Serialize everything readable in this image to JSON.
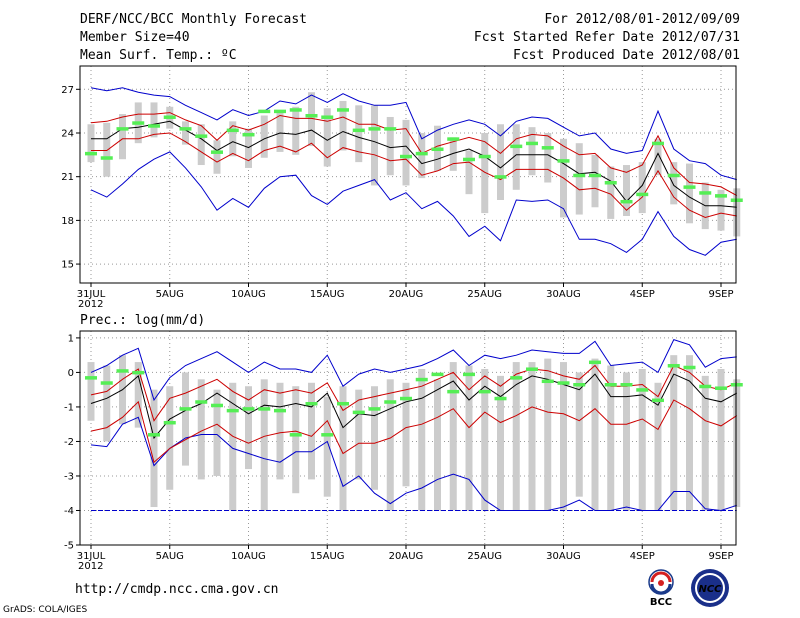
{
  "header": {
    "title": "DERF/NCC/BCC Monthly Forecast",
    "member_size": "Member Size=40",
    "variable": "Mean Surf. Temp.: ºC",
    "period": "For 2012/08/01-2012/09/09",
    "started": "Fcst Started Refer Date 2012/07/31",
    "produced": "Fcst Produced Date 2012/08/01"
  },
  "footer": {
    "url": "http://cmdp.ncc.cma.gov.cn",
    "credit": "GrADS: COLA/IGES",
    "bcc_logo_text": "BCC",
    "ncc_logo_text": "NCC"
  },
  "colors": {
    "envelope": "#0000cc",
    "spread": "#cc0000",
    "mean": "#000000",
    "box": "#cccccc",
    "obs": "#55ee55",
    "grid": "#999999"
  },
  "chart_data": [
    {
      "type": "box-ensemble",
      "title": "Mean Surf. Temp.: ºC",
      "x_tick_labels": [
        "31JUL\n2012",
        "5AUG",
        "10AUG",
        "15AUG",
        "20AUG",
        "25AUG",
        "30AUG",
        "4SEP",
        "9SEP"
      ],
      "x_tick_day_index": [
        0,
        5,
        10,
        15,
        20,
        25,
        30,
        35,
        40
      ],
      "ylim": [
        13.7,
        28.6
      ],
      "yticks": [
        15,
        18,
        21,
        24,
        27
      ],
      "series": {
        "max": [
          27.1,
          26.9,
          27.1,
          26.8,
          26.6,
          26.5,
          25.9,
          25.4,
          24.9,
          25.6,
          25.2,
          25.5,
          26.2,
          26.0,
          26.6,
          26.1,
          26.7,
          26.2,
          25.9,
          25.9,
          26.1,
          23.6,
          24.2,
          24.6,
          24.9,
          24.6,
          23.8,
          24.8,
          25.1,
          25.0,
          24.4,
          23.8,
          24.0,
          22.9,
          22.6,
          22.8,
          25.5,
          22.9,
          22.1,
          21.9,
          21.1,
          20.8
        ],
        "spread_upper": [
          24.7,
          24.8,
          25.1,
          25.3,
          25.3,
          25.4,
          24.9,
          24.5,
          23.5,
          24.5,
          24.2,
          24.6,
          25.2,
          25.0,
          25.0,
          24.8,
          25.1,
          24.6,
          24.6,
          24.2,
          24.3,
          22.6,
          23.1,
          23.4,
          23.7,
          23.4,
          22.6,
          23.6,
          23.9,
          23.8,
          23.1,
          22.5,
          22.6,
          21.6,
          21.3,
          21.8,
          23.8,
          21.6,
          20.6,
          20.5,
          20.3,
          19.7
        ],
        "mean": [
          23.6,
          23.6,
          24.3,
          24.4,
          24.6,
          24.8,
          24.2,
          23.6,
          22.8,
          23.4,
          23.0,
          23.6,
          24.0,
          23.9,
          24.2,
          23.5,
          24.1,
          23.7,
          23.4,
          23.0,
          23.1,
          21.9,
          22.2,
          22.6,
          22.9,
          22.4,
          21.6,
          22.5,
          22.5,
          22.5,
          21.9,
          21.2,
          21.3,
          20.7,
          19.3,
          20.4,
          22.6,
          20.4,
          19.6,
          19.0,
          19.0,
          18.9
        ],
        "spread_lower": [
          22.8,
          22.8,
          23.6,
          23.6,
          23.9,
          24.0,
          23.4,
          22.7,
          22.0,
          22.6,
          22.1,
          22.8,
          23.1,
          22.7,
          23.3,
          22.3,
          23.0,
          22.7,
          22.5,
          22.1,
          22.2,
          21.1,
          21.4,
          21.9,
          22.0,
          21.3,
          20.8,
          21.5,
          21.5,
          21.5,
          20.9,
          20.1,
          20.2,
          19.8,
          18.7,
          19.6,
          21.4,
          19.6,
          18.7,
          18.2,
          18.5,
          18.3
        ],
        "min": [
          20.1,
          19.6,
          20.5,
          21.5,
          22.2,
          22.7,
          21.6,
          20.3,
          18.7,
          19.5,
          18.9,
          20.2,
          21.0,
          21.1,
          19.7,
          19.1,
          20.0,
          20.4,
          20.8,
          19.4,
          19.9,
          18.8,
          19.3,
          18.3,
          16.9,
          17.6,
          16.6,
          19.4,
          19.3,
          19.4,
          18.8,
          16.7,
          16.7,
          16.4,
          15.8,
          16.7,
          18.6,
          16.9,
          16.0,
          15.6,
          16.5,
          16.7
        ],
        "box_low": [
          22.0,
          21.0,
          22.2,
          23.3,
          23.7,
          24.3,
          23.2,
          21.8,
          21.2,
          22.4,
          21.6,
          22.3,
          22.7,
          22.5,
          23.1,
          21.7,
          22.8,
          22.0,
          20.4,
          21.1,
          20.4,
          20.9,
          21.4,
          21.4,
          19.8,
          18.5,
          19.4,
          20.1,
          21.1,
          20.6,
          18.2,
          18.4,
          18.9,
          18.1,
          18.3,
          18.5,
          21.1,
          19.1,
          17.8,
          17.4,
          17.3,
          16.9
        ],
        "box_high": [
          24.6,
          24.7,
          25.3,
          26.1,
          26.1,
          25.8,
          24.8,
          24.6,
          23.5,
          24.8,
          24.3,
          25.2,
          25.4,
          25.8,
          26.8,
          25.7,
          26.2,
          25.9,
          25.9,
          25.1,
          24.9,
          24.0,
          24.5,
          23.7,
          22.8,
          24.0,
          24.6,
          24.6,
          24.4,
          24.0,
          23.6,
          23.3,
          22.5,
          21.7,
          21.8,
          22.0,
          23.6,
          22.0,
          21.9,
          20.6,
          20.1,
          20.2
        ],
        "observed": [
          22.6,
          22.3,
          24.3,
          24.7,
          24.5,
          25.1,
          24.3,
          23.8,
          22.7,
          24.2,
          23.9,
          25.5,
          25.5,
          25.6,
          25.2,
          25.1,
          25.6,
          24.2,
          24.3,
          24.3,
          22.4,
          22.6,
          22.9,
          23.6,
          22.2,
          22.4,
          21.0,
          23.1,
          23.3,
          23.0,
          22.1,
          21.1,
          21.1,
          20.6,
          19.3,
          19.8,
          23.3,
          21.1,
          20.3,
          19.9,
          19.7,
          19.4
        ]
      }
    },
    {
      "type": "box-ensemble",
      "title": "Prec.: log(mm/d)",
      "x_tick_labels": [
        "31JUL\n2012",
        "5AUG",
        "10AUG",
        "15AUG",
        "20AUG",
        "25AUG",
        "30AUG",
        "4SEP",
        "9SEP"
      ],
      "x_tick_day_index": [
        0,
        5,
        10,
        15,
        20,
        25,
        30,
        35,
        40
      ],
      "ylim": [
        -5,
        1.2
      ],
      "yticks": [
        -5,
        -4,
        -3,
        -2,
        -1,
        0,
        1
      ],
      "floor_line": -4,
      "series": {
        "max": [
          0.0,
          0.2,
          0.5,
          0.7,
          -0.8,
          -0.15,
          0.2,
          0.4,
          0.6,
          0.3,
          0.0,
          0.3,
          0.1,
          0.1,
          0.0,
          0.5,
          -0.4,
          -0.05,
          0.1,
          0.0,
          0.1,
          0.2,
          0.4,
          0.65,
          0.2,
          0.5,
          0.4,
          0.5,
          0.65,
          0.6,
          0.55,
          0.55,
          0.9,
          0.2,
          0.25,
          0.3,
          0.0,
          0.95,
          0.8,
          0.15,
          0.4,
          0.45
        ],
        "spread_upper": [
          -0.65,
          -0.55,
          -0.2,
          0.1,
          -1.4,
          -0.75,
          -0.6,
          -0.4,
          -0.2,
          -0.55,
          -0.8,
          -0.5,
          -0.6,
          -0.5,
          -0.6,
          -0.3,
          -1.1,
          -0.8,
          -0.7,
          -0.6,
          -0.5,
          -0.4,
          -0.2,
          0.0,
          -0.5,
          -0.1,
          -0.4,
          -0.05,
          0.1,
          0.05,
          -0.1,
          -0.2,
          0.2,
          -0.4,
          -0.4,
          -0.35,
          -0.7,
          0.2,
          0.0,
          -0.4,
          -0.5,
          -0.3
        ],
        "mean": [
          -0.9,
          -0.75,
          -0.5,
          -0.1,
          -1.9,
          -1.35,
          -1.1,
          -0.9,
          -0.6,
          -0.9,
          -1.2,
          -0.95,
          -1.0,
          -0.9,
          -1.0,
          -0.6,
          -1.6,
          -1.2,
          -1.25,
          -1.05,
          -0.85,
          -0.75,
          -0.5,
          -0.25,
          -0.8,
          -0.4,
          -0.7,
          -0.35,
          -0.1,
          -0.2,
          -0.35,
          -0.5,
          -0.05,
          -0.7,
          -0.7,
          -0.65,
          -0.95,
          -0.05,
          -0.25,
          -0.75,
          -0.85,
          -0.6
        ],
        "spread_lower": [
          -1.7,
          -1.6,
          -1.3,
          -0.85,
          -2.6,
          -2.2,
          -1.95,
          -1.7,
          -1.5,
          -1.85,
          -2.05,
          -1.85,
          -1.75,
          -1.7,
          -1.85,
          -1.4,
          -2.35,
          -2.05,
          -2.05,
          -1.9,
          -1.6,
          -1.5,
          -1.3,
          -1.05,
          -1.6,
          -1.15,
          -1.45,
          -1.25,
          -1.0,
          -1.15,
          -1.2,
          -1.4,
          -1.05,
          -1.5,
          -1.5,
          -1.35,
          -1.65,
          -0.8,
          -1.05,
          -1.4,
          -1.55,
          -1.25
        ],
        "min": [
          -2.1,
          -2.15,
          -1.5,
          -1.3,
          -2.7,
          -2.2,
          -1.9,
          -1.8,
          -1.8,
          -2.2,
          -2.35,
          -2.5,
          -2.6,
          -2.3,
          -2.3,
          -2.0,
          -3.3,
          -3.0,
          -3.5,
          -3.8,
          -3.5,
          -3.35,
          -3.1,
          -2.95,
          -3.1,
          -3.7,
          -4.0,
          -4.0,
          -4.0,
          -4.0,
          -3.9,
          -3.7,
          -4.0,
          -4.0,
          -3.9,
          -4.0,
          -4.0,
          -3.45,
          -3.45,
          -3.95,
          -4.0,
          -3.85
        ],
        "box_low": [
          -1.4,
          -2.0,
          -1.5,
          -1.6,
          -3.9,
          -3.4,
          -2.7,
          -3.1,
          -3.0,
          -4.0,
          -2.8,
          -4.0,
          -3.1,
          -3.5,
          -3.1,
          -3.6,
          -4.0,
          -3.1,
          -3.4,
          -4.0,
          -3.3,
          -4.0,
          -4.0,
          -4.0,
          -4.0,
          -4.0,
          -4.0,
          -4.0,
          -4.0,
          -4.0,
          -4.0,
          -3.6,
          -4.0,
          -4.0,
          -4.0,
          -4.0,
          -4.0,
          -4.0,
          -4.0,
          -4.0,
          -4.0,
          -3.9
        ],
        "box_high": [
          0.3,
          0.2,
          0.5,
          0.3,
          -0.5,
          -0.4,
          0.0,
          -0.2,
          -0.5,
          -0.3,
          -0.4,
          -0.2,
          -0.3,
          -0.4,
          -0.3,
          -0.7,
          -0.4,
          -0.5,
          -0.4,
          -0.2,
          -0.3,
          0.1,
          -0.2,
          0.3,
          0.2,
          0.1,
          -0.1,
          0.3,
          0.3,
          0.4,
          0.3,
          0.0,
          0.4,
          0.2,
          0.0,
          0.1,
          -0.3,
          0.5,
          0.5,
          -0.1,
          0.1,
          -0.2
        ],
        "observed": [
          -0.15,
          -0.3,
          0.05,
          0.0,
          -1.8,
          -1.45,
          -1.05,
          -0.85,
          -0.95,
          -1.1,
          -1.05,
          -1.05,
          -1.1,
          -1.8,
          -0.9,
          -1.8,
          -0.9,
          -1.15,
          -1.05,
          -0.85,
          -0.75,
          -0.2,
          -0.05,
          -0.55,
          -0.05,
          -0.55,
          -0.75,
          -0.15,
          0.1,
          -0.25,
          -0.3,
          -0.35,
          0.3,
          -0.35,
          -0.35,
          -0.5,
          -0.8,
          0.2,
          0.15,
          -0.4,
          -0.45,
          -0.35
        ]
      }
    }
  ]
}
